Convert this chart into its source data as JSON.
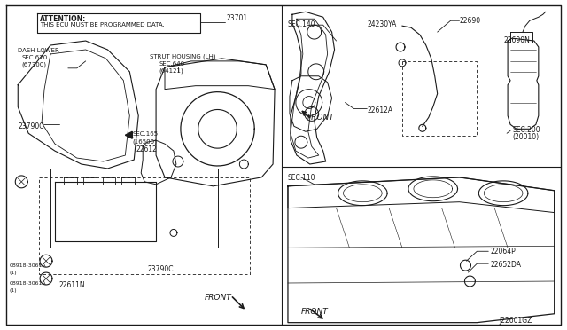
{
  "background_color": "#ffffff",
  "line_color": "#1a1a1a",
  "fig_width": 6.4,
  "fig_height": 3.72,
  "dpi": 100,
  "labels": {
    "attention_line1": "ATTENTION:",
    "attention_line2": "THIS ECU MUST BE PROGRAMMED DATA.",
    "p23701": "23701",
    "dash_lower": "DASH LOWER",
    "sec670": "SEC.670",
    "p67300": "(67300)",
    "strut_housing": "STRUT HOUSING (LH)",
    "sec640": "SEC.640",
    "p64121": "(64121)",
    "sec165": "SEC.165",
    "p16500": "(16500)",
    "p22612": "22612",
    "p23790c_left": "23790C",
    "p08918_1": "08918-3061A",
    "p1_1": "(1)",
    "p22611n": "22611N",
    "p08918_2": "08918-3061A",
    "p1_2": "(1)",
    "p23790c_right": "23790C",
    "front_ll": "FRONT",
    "sec140": "SEC.140",
    "p24230ya": "24230YA",
    "p22690": "22690",
    "p22690n": "22690N",
    "p22612a": "22612A",
    "front_tr": "FRONT",
    "sec200": "SEC.200",
    "p20010": "(20010)",
    "sec110": "SEC.110",
    "p22064p": "22064P",
    "p22652da": "22652DA",
    "front_br": "FRONT",
    "diagram_id": "J22601GZ"
  }
}
